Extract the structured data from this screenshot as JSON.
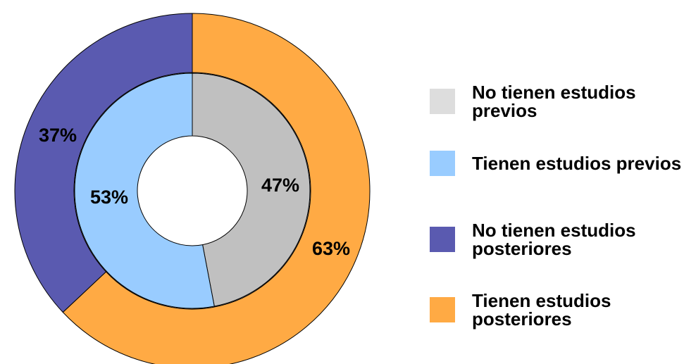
{
  "chart_data": {
    "type": "pie",
    "subtype": "doughnut",
    "rings": [
      {
        "ring": "inner",
        "series": [
          {
            "name": "No tienen estudios previos",
            "value": 47,
            "label": "47%",
            "color": "#c0c0c0"
          },
          {
            "name": "Tienen estudios previos",
            "value": 53,
            "label": "53%",
            "color": "#99ccff"
          }
        ]
      },
      {
        "ring": "outer",
        "series": [
          {
            "name": "Tienen estudios posteriores",
            "value": 63,
            "label": "63%",
            "color": "#ffaa44"
          },
          {
            "name": "No tienen estudios posteriores",
            "value": 37,
            "label": "37%",
            "color": "#5a5ab0"
          }
        ]
      }
    ],
    "legend": {
      "placement": "right",
      "entries": [
        {
          "label": "No tienen estudios previos",
          "color": "#dddddd"
        },
        {
          "label": "Tienen estudios previos",
          "color": "#99ccff"
        },
        {
          "label": "No tienen estudios posteriores",
          "color": "#5a5ab0"
        },
        {
          "label": "Tienen estudios posteriores",
          "color": "#ffaa44"
        }
      ]
    }
  }
}
